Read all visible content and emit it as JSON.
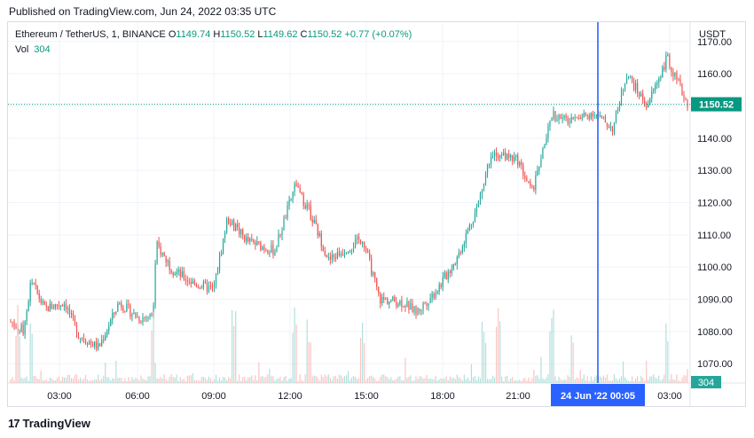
{
  "header": {
    "published": "Published on TradingView.com, Jun 24, 2022 03:35 UTC"
  },
  "legend": {
    "symbol": "Ethereum / TetherUS, 1, BINANCE",
    "o_label": "O",
    "o": "1149.74",
    "h_label": "H",
    "h": "1150.52",
    "l_label": "L",
    "l": "1149.62",
    "c_label": "C",
    "c": "1150.52",
    "change": "+0.77 (+0.07%)",
    "vol_label": "Vol",
    "vol": "304"
  },
  "chart_data": {
    "type": "candlestick",
    "currency": "USDT",
    "y_ticks": [
      "1170.00",
      "1160.00",
      "1150.00",
      "1140.00",
      "1130.00",
      "1120.00",
      "1110.00",
      "1100.00",
      "1090.00",
      "1080.00",
      "1070.00"
    ],
    "ylim": [
      1064,
      1176
    ],
    "x_ticks": [
      "03:00",
      "06:00",
      "09:00",
      "12:00",
      "15:00",
      "18:00",
      "21:00",
      "24 Jun '22",
      "03:00"
    ],
    "last_price": "1150.52",
    "last_volume": "304",
    "crosshair_time": "24 Jun '22  00:05",
    "price_path": [
      [
        0,
        1083
      ],
      [
        0.02,
        1080
      ],
      [
        0.03,
        1096
      ],
      [
        0.05,
        1087
      ],
      [
        0.08,
        1089
      ],
      [
        0.1,
        1079
      ],
      [
        0.13,
        1075
      ],
      [
        0.16,
        1089
      ],
      [
        0.19,
        1084
      ],
      [
        0.21,
        1085
      ],
      [
        0.215,
        1107
      ],
      [
        0.24,
        1099
      ],
      [
        0.27,
        1095
      ],
      [
        0.3,
        1093
      ],
      [
        0.32,
        1115
      ],
      [
        0.35,
        1108
      ],
      [
        0.39,
        1105
      ],
      [
        0.42,
        1125
      ],
      [
        0.44,
        1118
      ],
      [
        0.47,
        1102
      ],
      [
        0.52,
        1109
      ],
      [
        0.545,
        1090
      ],
      [
        0.58,
        1089
      ],
      [
        0.6,
        1086
      ],
      [
        0.63,
        1093
      ],
      [
        0.66,
        1103
      ],
      [
        0.69,
        1119
      ],
      [
        0.71,
        1136
      ],
      [
        0.75,
        1133
      ],
      [
        0.77,
        1123
      ],
      [
        0.8,
        1147
      ],
      [
        0.83,
        1145
      ],
      [
        0.86,
        1148
      ],
      [
        0.89,
        1143
      ],
      [
        0.91,
        1160
      ],
      [
        0.94,
        1150
      ],
      [
        0.97,
        1165
      ],
      [
        1.0,
        1150.5
      ]
    ],
    "volume_spikes": [
      0.01,
      0.03,
      0.21,
      0.33,
      0.42,
      0.44,
      0.52,
      0.7,
      0.72,
      0.8,
      0.83,
      0.97
    ]
  },
  "colors": {
    "up": "#26a69a",
    "down": "#ef5350",
    "crosshair": "#2962ff",
    "price_badge": "#089981",
    "volume_badge": "#26a69a"
  },
  "brand": {
    "name": "TradingView",
    "mark": "17"
  }
}
